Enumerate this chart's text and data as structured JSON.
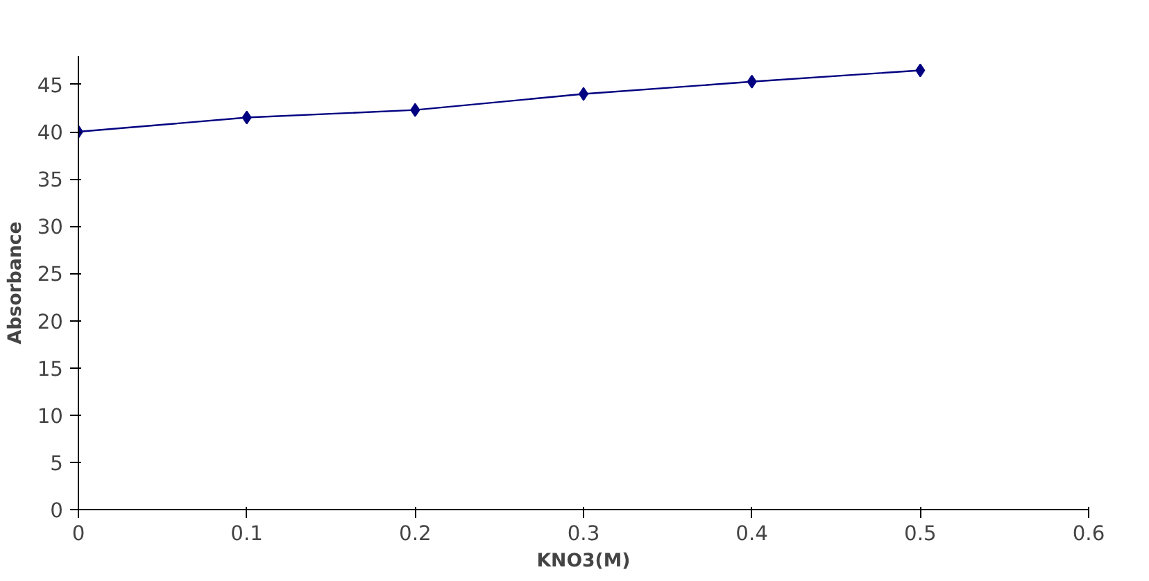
{
  "chart_data": {
    "type": "line",
    "xlabel": "KNO3(M)",
    "ylabel": "Absorbance",
    "x": [
      0,
      0.1,
      0.2,
      0.3,
      0.4,
      0.5
    ],
    "series": [
      {
        "color": "#000080",
        "values": [
          40,
          41.5,
          42.3,
          44,
          45.3,
          46.5
        ]
      }
    ],
    "xlim": [
      0,
      0.6
    ],
    "xticks": [
      0,
      0.1,
      0.2,
      0.3,
      0.4,
      0.5,
      0.6
    ],
    "ylim": [
      0,
      48
    ],
    "yticks": [
      0,
      5,
      10,
      15,
      20,
      25,
      30,
      35,
      40,
      45
    ],
    "grid": false,
    "marker": "diamond",
    "line_style": "solid"
  }
}
